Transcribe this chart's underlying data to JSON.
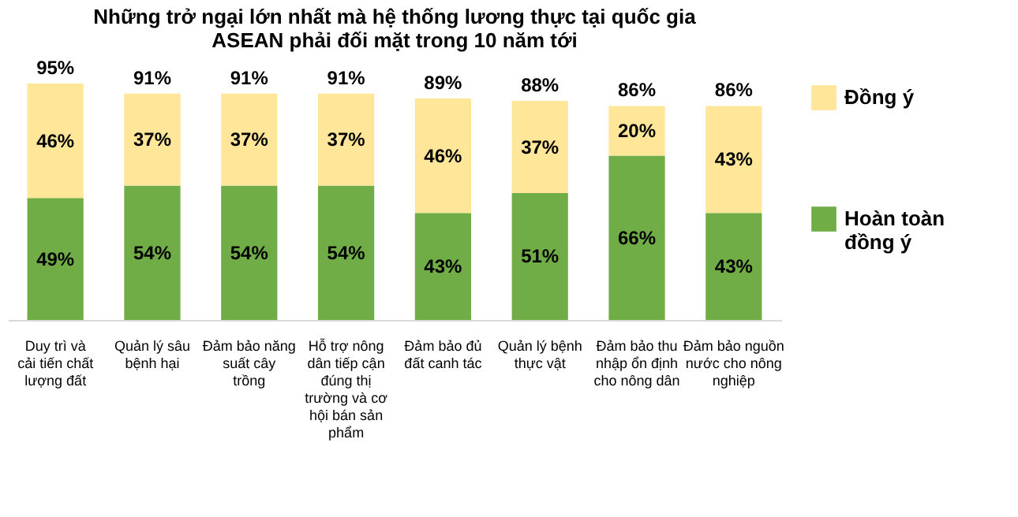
{
  "chart_data": {
    "type": "bar",
    "title": "Những trở ngại lớn nhất mà hệ thống lương thực tại quốc gia ASEAN phải đối mặt trong 10 năm tới",
    "categories": [
      "Duy trì và cải tiến chất lượng đất",
      "Quản lý sâu bệnh hại",
      "Đảm bảo năng suất cây trồng",
      "Hỗ trợ nông dân tiếp cận đúng thị trường và cơ hội bán sản phẩm",
      "Đảm bảo đủ đất canh tác",
      "Quản lý bệnh thực vật",
      "Đảm bảo thu nhập ổn định cho nông dân",
      "Đảm bảo nguồn nước cho nông nghiệp"
    ],
    "stacked": true,
    "series": [
      {
        "name": "Hoàn toàn đồng ý",
        "color": "#70ad47",
        "values": [
          49,
          54,
          54,
          54,
          43,
          51,
          66,
          43
        ],
        "value_labels": [
          "49%",
          "54%",
          "54%",
          "54%",
          "43%",
          "51%",
          "66%",
          "43%"
        ]
      },
      {
        "name": "Đồng ý",
        "color": "#ffe699",
        "values": [
          46,
          37,
          37,
          37,
          46,
          37,
          20,
          43
        ],
        "value_labels": [
          "46%",
          "37%",
          "37%",
          "37%",
          "46%",
          "37%",
          "20%",
          "43%"
        ]
      }
    ],
    "totals": [
      "95%",
      "91%",
      "91%",
      "91%",
      "89%",
      "88%",
      "86%",
      "86%"
    ],
    "legend": "right",
    "grid": false
  }
}
